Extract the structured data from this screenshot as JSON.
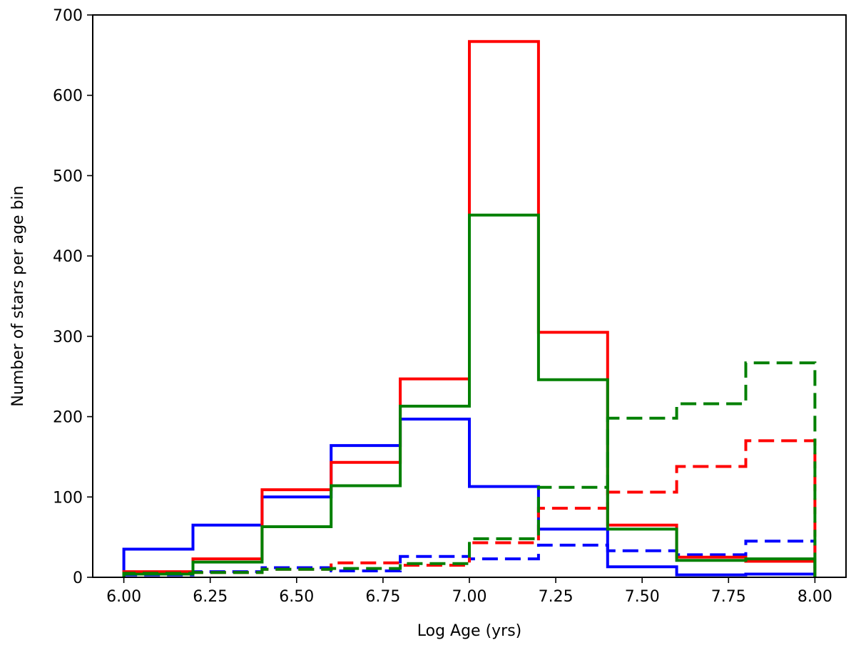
{
  "chart_data": {
    "type": "step-histogram",
    "title": "",
    "xlabel": "Log Age (yrs)",
    "ylabel": "Number of stars per age bin",
    "xlim": [
      5.91,
      8.09
    ],
    "ylim": [
      0,
      700
    ],
    "xticks": [
      "6.00",
      "6.25",
      "6.50",
      "6.75",
      "7.00",
      "7.25",
      "7.50",
      "7.75",
      "8.00"
    ],
    "yticks": [
      "0",
      "100",
      "200",
      "300",
      "400",
      "500",
      "600",
      "700"
    ],
    "bin_edges": [
      6.0,
      6.2,
      6.4,
      6.6,
      6.8,
      7.0,
      7.2,
      7.4,
      7.6,
      7.8,
      8.0
    ],
    "grid": false,
    "legend": "none",
    "series": [
      {
        "color": "#0000ff",
        "linestyle": "solid",
        "values": [
          35,
          65,
          100,
          164,
          197,
          113,
          60,
          13,
          3,
          4
        ]
      },
      {
        "color": "#0000ff",
        "linestyle": "dashed",
        "values": [
          3,
          7,
          12,
          8,
          26,
          23,
          40,
          33,
          28,
          45
        ]
      },
      {
        "color": "#ff0000",
        "linestyle": "solid",
        "values": [
          7,
          23,
          109,
          143,
          247,
          667,
          305,
          65,
          25,
          20
        ]
      },
      {
        "color": "#ff0000",
        "linestyle": "dashed",
        "values": [
          4,
          6,
          10,
          18,
          15,
          43,
          86,
          106,
          138,
          170
        ]
      },
      {
        "color": "#008000",
        "linestyle": "solid",
        "values": [
          4,
          19,
          63,
          114,
          213,
          451,
          246,
          60,
          21,
          23
        ]
      },
      {
        "color": "#008000",
        "linestyle": "dashed",
        "values": [
          5,
          6,
          10,
          11,
          17,
          48,
          112,
          198,
          216,
          267
        ]
      }
    ]
  }
}
